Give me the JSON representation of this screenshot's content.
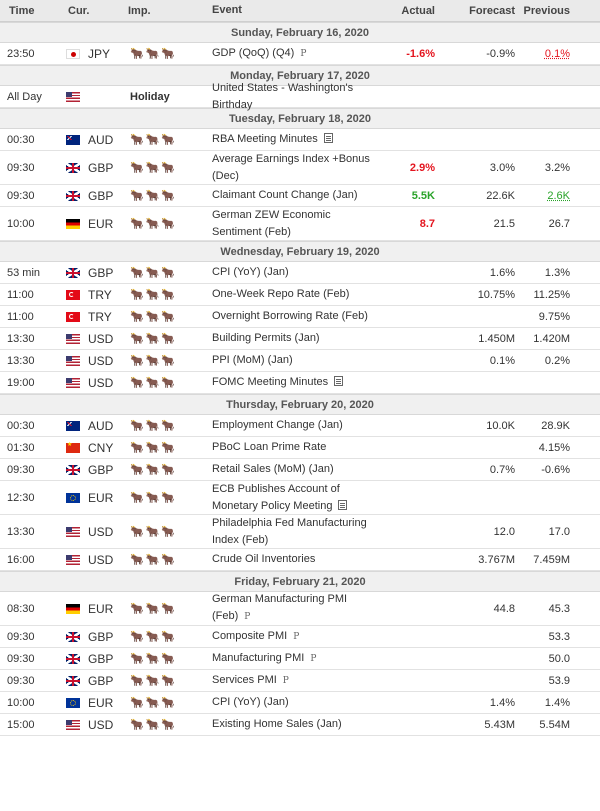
{
  "header": {
    "time": "Time",
    "currency": "Cur.",
    "importance": "Imp.",
    "event": "Event",
    "actual": "Actual",
    "forecast": "Forecast",
    "previous": "Previous"
  },
  "bulls": "🐂🐂🐂",
  "tag_p": "P",
  "colors": {
    "red": "#e4151f",
    "green": "#29a329",
    "header_bg": "#eaeaea"
  },
  "days": [
    {
      "label": "Sunday, February 16, 2020",
      "events": [
        {
          "time": "23:50",
          "flag": "fl-jp",
          "cur": "JPY",
          "event": "GDP (QoQ) (Q4)",
          "tag": "P",
          "actual": "-1.6%",
          "actual_color": "red",
          "forecast": "-0.9%",
          "previous": "0.1%",
          "previous_color": "prev-red",
          "tall": false
        }
      ]
    },
    {
      "label": "Monday, February 17, 2020",
      "events": [
        {
          "time": "All Day",
          "flag": "fl-us",
          "cur": "",
          "holiday": "Holiday",
          "event": "United States - Washington's Birthday",
          "actual": "",
          "forecast": "",
          "previous": "",
          "tall": false
        }
      ]
    },
    {
      "label": "Tuesday, February 18, 2020",
      "events": [
        {
          "time": "00:30",
          "flag": "fl-au",
          "cur": "AUD",
          "event": "RBA Meeting Minutes",
          "doc": true,
          "actual": "",
          "forecast": "",
          "previous": "",
          "tall": false
        },
        {
          "time": "09:30",
          "flag": "fl-gb",
          "cur": "GBP",
          "event": "Average Earnings Index +Bonus (Dec)",
          "actual": "2.9%",
          "actual_color": "red",
          "forecast": "3.0%",
          "previous": "3.2%",
          "tall": true
        },
        {
          "time": "09:30",
          "flag": "fl-gb",
          "cur": "GBP",
          "event": "Claimant Count Change (Jan)",
          "actual": "5.5K",
          "actual_color": "green",
          "forecast": "22.6K",
          "previous": "2.6K",
          "previous_color": "prev-green",
          "tall": false
        },
        {
          "time": "10:00",
          "flag": "fl-de",
          "cur": "EUR",
          "event": "German ZEW Economic Sentiment (Feb)",
          "actual": "8.7",
          "actual_color": "red",
          "forecast": "21.5",
          "previous": "26.7",
          "tall": true
        }
      ]
    },
    {
      "label": "Wednesday, February 19, 2020",
      "events": [
        {
          "time": "53 min",
          "flag": "fl-gb",
          "cur": "GBP",
          "event": "CPI (YoY) (Jan)",
          "actual": "",
          "forecast": "1.6%",
          "previous": "1.3%",
          "tall": false
        },
        {
          "time": "11:00",
          "flag": "fl-tr",
          "cur": "TRY",
          "event": "One-Week Repo Rate (Feb)",
          "actual": "",
          "forecast": "10.75%",
          "previous": "11.25%",
          "tall": false
        },
        {
          "time": "11:00",
          "flag": "fl-tr",
          "cur": "TRY",
          "event": "Overnight Borrowing Rate (Feb)",
          "actual": "",
          "forecast": "",
          "previous": "9.75%",
          "tall": false
        },
        {
          "time": "13:30",
          "flag": "fl-us",
          "cur": "USD",
          "event": "Building Permits (Jan)",
          "actual": "",
          "forecast": "1.450M",
          "previous": "1.420M",
          "tall": false
        },
        {
          "time": "13:30",
          "flag": "fl-us",
          "cur": "USD",
          "event": "PPI (MoM) (Jan)",
          "actual": "",
          "forecast": "0.1%",
          "previous": "0.2%",
          "tall": false
        },
        {
          "time": "19:00",
          "flag": "fl-us",
          "cur": "USD",
          "event": "FOMC Meeting Minutes",
          "doc": true,
          "actual": "",
          "forecast": "",
          "previous": "",
          "tall": false
        }
      ]
    },
    {
      "label": "Thursday, February 20, 2020",
      "events": [
        {
          "time": "00:30",
          "flag": "fl-au",
          "cur": "AUD",
          "event": "Employment Change (Jan)",
          "actual": "",
          "forecast": "10.0K",
          "previous": "28.9K",
          "tall": false
        },
        {
          "time": "01:30",
          "flag": "fl-cn",
          "cur": "CNY",
          "event": "PBoC Loan Prime Rate",
          "actual": "",
          "forecast": "",
          "previous": "4.15%",
          "tall": false
        },
        {
          "time": "09:30",
          "flag": "fl-gb",
          "cur": "GBP",
          "event": "Retail Sales (MoM) (Jan)",
          "actual": "",
          "forecast": "0.7%",
          "previous": "-0.6%",
          "tall": false
        },
        {
          "time": "12:30",
          "flag": "fl-eu",
          "cur": "EUR",
          "event": "ECB Publishes Account of Monetary Policy Meeting",
          "doc": true,
          "actual": "",
          "forecast": "",
          "previous": "",
          "tall": true
        },
        {
          "time": "13:30",
          "flag": "fl-us",
          "cur": "USD",
          "event": "Philadelphia Fed Manufacturing Index (Feb)",
          "actual": "",
          "forecast": "12.0",
          "previous": "17.0",
          "tall": true
        },
        {
          "time": "16:00",
          "flag": "fl-us",
          "cur": "USD",
          "event": "Crude Oil Inventories",
          "actual": "",
          "forecast": "3.767M",
          "previous": "7.459M",
          "tall": false
        }
      ]
    },
    {
      "label": "Friday, February 21, 2020",
      "events": [
        {
          "time": "08:30",
          "flag": "fl-de",
          "cur": "EUR",
          "event": "German Manufacturing PMI (Feb)",
          "tag": "P",
          "actual": "",
          "forecast": "44.8",
          "previous": "45.3",
          "tall": true
        },
        {
          "time": "09:30",
          "flag": "fl-gb",
          "cur": "GBP",
          "event": "Composite PMI",
          "tag": "P",
          "actual": "",
          "forecast": "",
          "previous": "53.3",
          "tall": false
        },
        {
          "time": "09:30",
          "flag": "fl-gb",
          "cur": "GBP",
          "event": "Manufacturing PMI",
          "tag": "P",
          "actual": "",
          "forecast": "",
          "previous": "50.0",
          "tall": false
        },
        {
          "time": "09:30",
          "flag": "fl-gb",
          "cur": "GBP",
          "event": "Services PMI",
          "tag": "P",
          "actual": "",
          "forecast": "",
          "previous": "53.9",
          "tall": false
        },
        {
          "time": "10:00",
          "flag": "fl-eu",
          "cur": "EUR",
          "event": "CPI (YoY) (Jan)",
          "actual": "",
          "forecast": "1.4%",
          "previous": "1.4%",
          "tall": false
        },
        {
          "time": "15:00",
          "flag": "fl-us",
          "cur": "USD",
          "event": "Existing Home Sales (Jan)",
          "actual": "",
          "forecast": "5.43M",
          "previous": "5.54M",
          "tall": false
        }
      ]
    }
  ]
}
